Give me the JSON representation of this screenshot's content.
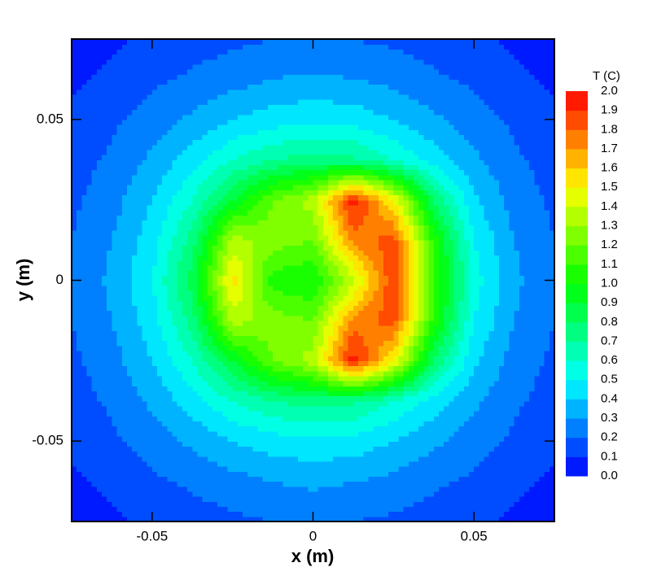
{
  "chart_data": {
    "type": "contour",
    "xlabel": "x (m)",
    "ylabel": "y (m)",
    "x": [
      -0.075,
      -0.0625,
      -0.05,
      -0.0375,
      -0.025,
      -0.0125,
      0,
      0.0125,
      0.025,
      0.0375,
      0.05,
      0.0625,
      0.075
    ],
    "y": [
      -0.075,
      -0.0625,
      -0.05,
      -0.0375,
      -0.025,
      -0.0125,
      0,
      0.0125,
      0.025,
      0.0375,
      0.05,
      0.0625,
      0.075
    ],
    "z": [
      [
        0.05,
        0.08,
        0.12,
        0.15,
        0.18,
        0.2,
        0.22,
        0.2,
        0.18,
        0.15,
        0.12,
        0.08,
        0.05
      ],
      [
        0.08,
        0.12,
        0.18,
        0.22,
        0.26,
        0.3,
        0.32,
        0.3,
        0.27,
        0.22,
        0.18,
        0.12,
        0.08
      ],
      [
        0.12,
        0.18,
        0.25,
        0.32,
        0.4,
        0.45,
        0.48,
        0.46,
        0.4,
        0.32,
        0.25,
        0.18,
        0.12
      ],
      [
        0.15,
        0.22,
        0.32,
        0.45,
        0.6,
        0.7,
        0.75,
        0.72,
        0.6,
        0.45,
        0.32,
        0.22,
        0.15
      ],
      [
        0.18,
        0.26,
        0.4,
        0.6,
        0.9,
        1.2,
        1.35,
        1.95,
        1.5,
        0.8,
        0.42,
        0.26,
        0.18
      ],
      [
        0.2,
        0.3,
        0.45,
        0.75,
        1.35,
        1.25,
        1.2,
        1.75,
        1.85,
        1.05,
        0.5,
        0.3,
        0.2
      ],
      [
        0.22,
        0.32,
        0.5,
        0.85,
        1.55,
        1.05,
        1.0,
        1.35,
        1.9,
        1.1,
        0.55,
        0.32,
        0.22
      ],
      [
        0.2,
        0.3,
        0.45,
        0.75,
        1.35,
        1.25,
        1.2,
        1.75,
        1.85,
        1.05,
        0.5,
        0.3,
        0.2
      ],
      [
        0.18,
        0.26,
        0.4,
        0.6,
        0.9,
        1.2,
        1.35,
        1.95,
        1.5,
        0.8,
        0.42,
        0.26,
        0.18
      ],
      [
        0.15,
        0.22,
        0.32,
        0.45,
        0.6,
        0.7,
        0.75,
        0.72,
        0.6,
        0.45,
        0.32,
        0.22,
        0.15
      ],
      [
        0.12,
        0.18,
        0.25,
        0.32,
        0.4,
        0.45,
        0.48,
        0.46,
        0.4,
        0.32,
        0.25,
        0.18,
        0.12
      ],
      [
        0.08,
        0.12,
        0.18,
        0.22,
        0.26,
        0.3,
        0.32,
        0.3,
        0.27,
        0.22,
        0.18,
        0.12,
        0.08
      ],
      [
        0.05,
        0.08,
        0.12,
        0.15,
        0.18,
        0.2,
        0.22,
        0.2,
        0.18,
        0.15,
        0.12,
        0.08,
        0.05
      ]
    ],
    "xlim": [
      -0.075,
      0.075
    ],
    "ylim": [
      -0.075,
      0.075
    ],
    "xticks": [
      -0.05,
      0,
      0.05
    ],
    "yticks": [
      -0.05,
      0,
      0.05
    ],
    "colormap": [
      "#0000ff",
      "#00ffff",
      "#00ff00",
      "#ffff00",
      "#ff0000"
    ],
    "colorbar": {
      "title": "T (C)",
      "levels": [
        {
          "value": 0,
          "label": "0.0"
        },
        {
          "value": 0.1,
          "label": "0.1"
        },
        {
          "value": 0.2,
          "label": "0.2"
        },
        {
          "value": 0.3,
          "label": "0.3"
        },
        {
          "value": 0.4,
          "label": "0.4"
        },
        {
          "value": 0.5,
          "label": "0.5"
        },
        {
          "value": 0.6,
          "label": "0.6"
        },
        {
          "value": 0.7,
          "label": "0.7"
        },
        {
          "value": 0.8,
          "label": "0.8"
        },
        {
          "value": 0.9,
          "label": "0.9"
        },
        {
          "value": 1,
          "label": "1.0"
        },
        {
          "value": 1.1,
          "label": "1.1"
        },
        {
          "value": 1.2,
          "label": "1.2"
        },
        {
          "value": 1.3,
          "label": "1.3"
        },
        {
          "value": 1.4,
          "label": "1.4"
        },
        {
          "value": 1.5,
          "label": "1.5"
        },
        {
          "value": 1.6,
          "label": "1.6"
        },
        {
          "value": 1.7,
          "label": "1.7"
        },
        {
          "value": 1.8,
          "label": "1.8"
        },
        {
          "value": 1.9,
          "label": "1.9"
        },
        {
          "value": 2,
          "label": "2.0"
        }
      ]
    }
  }
}
